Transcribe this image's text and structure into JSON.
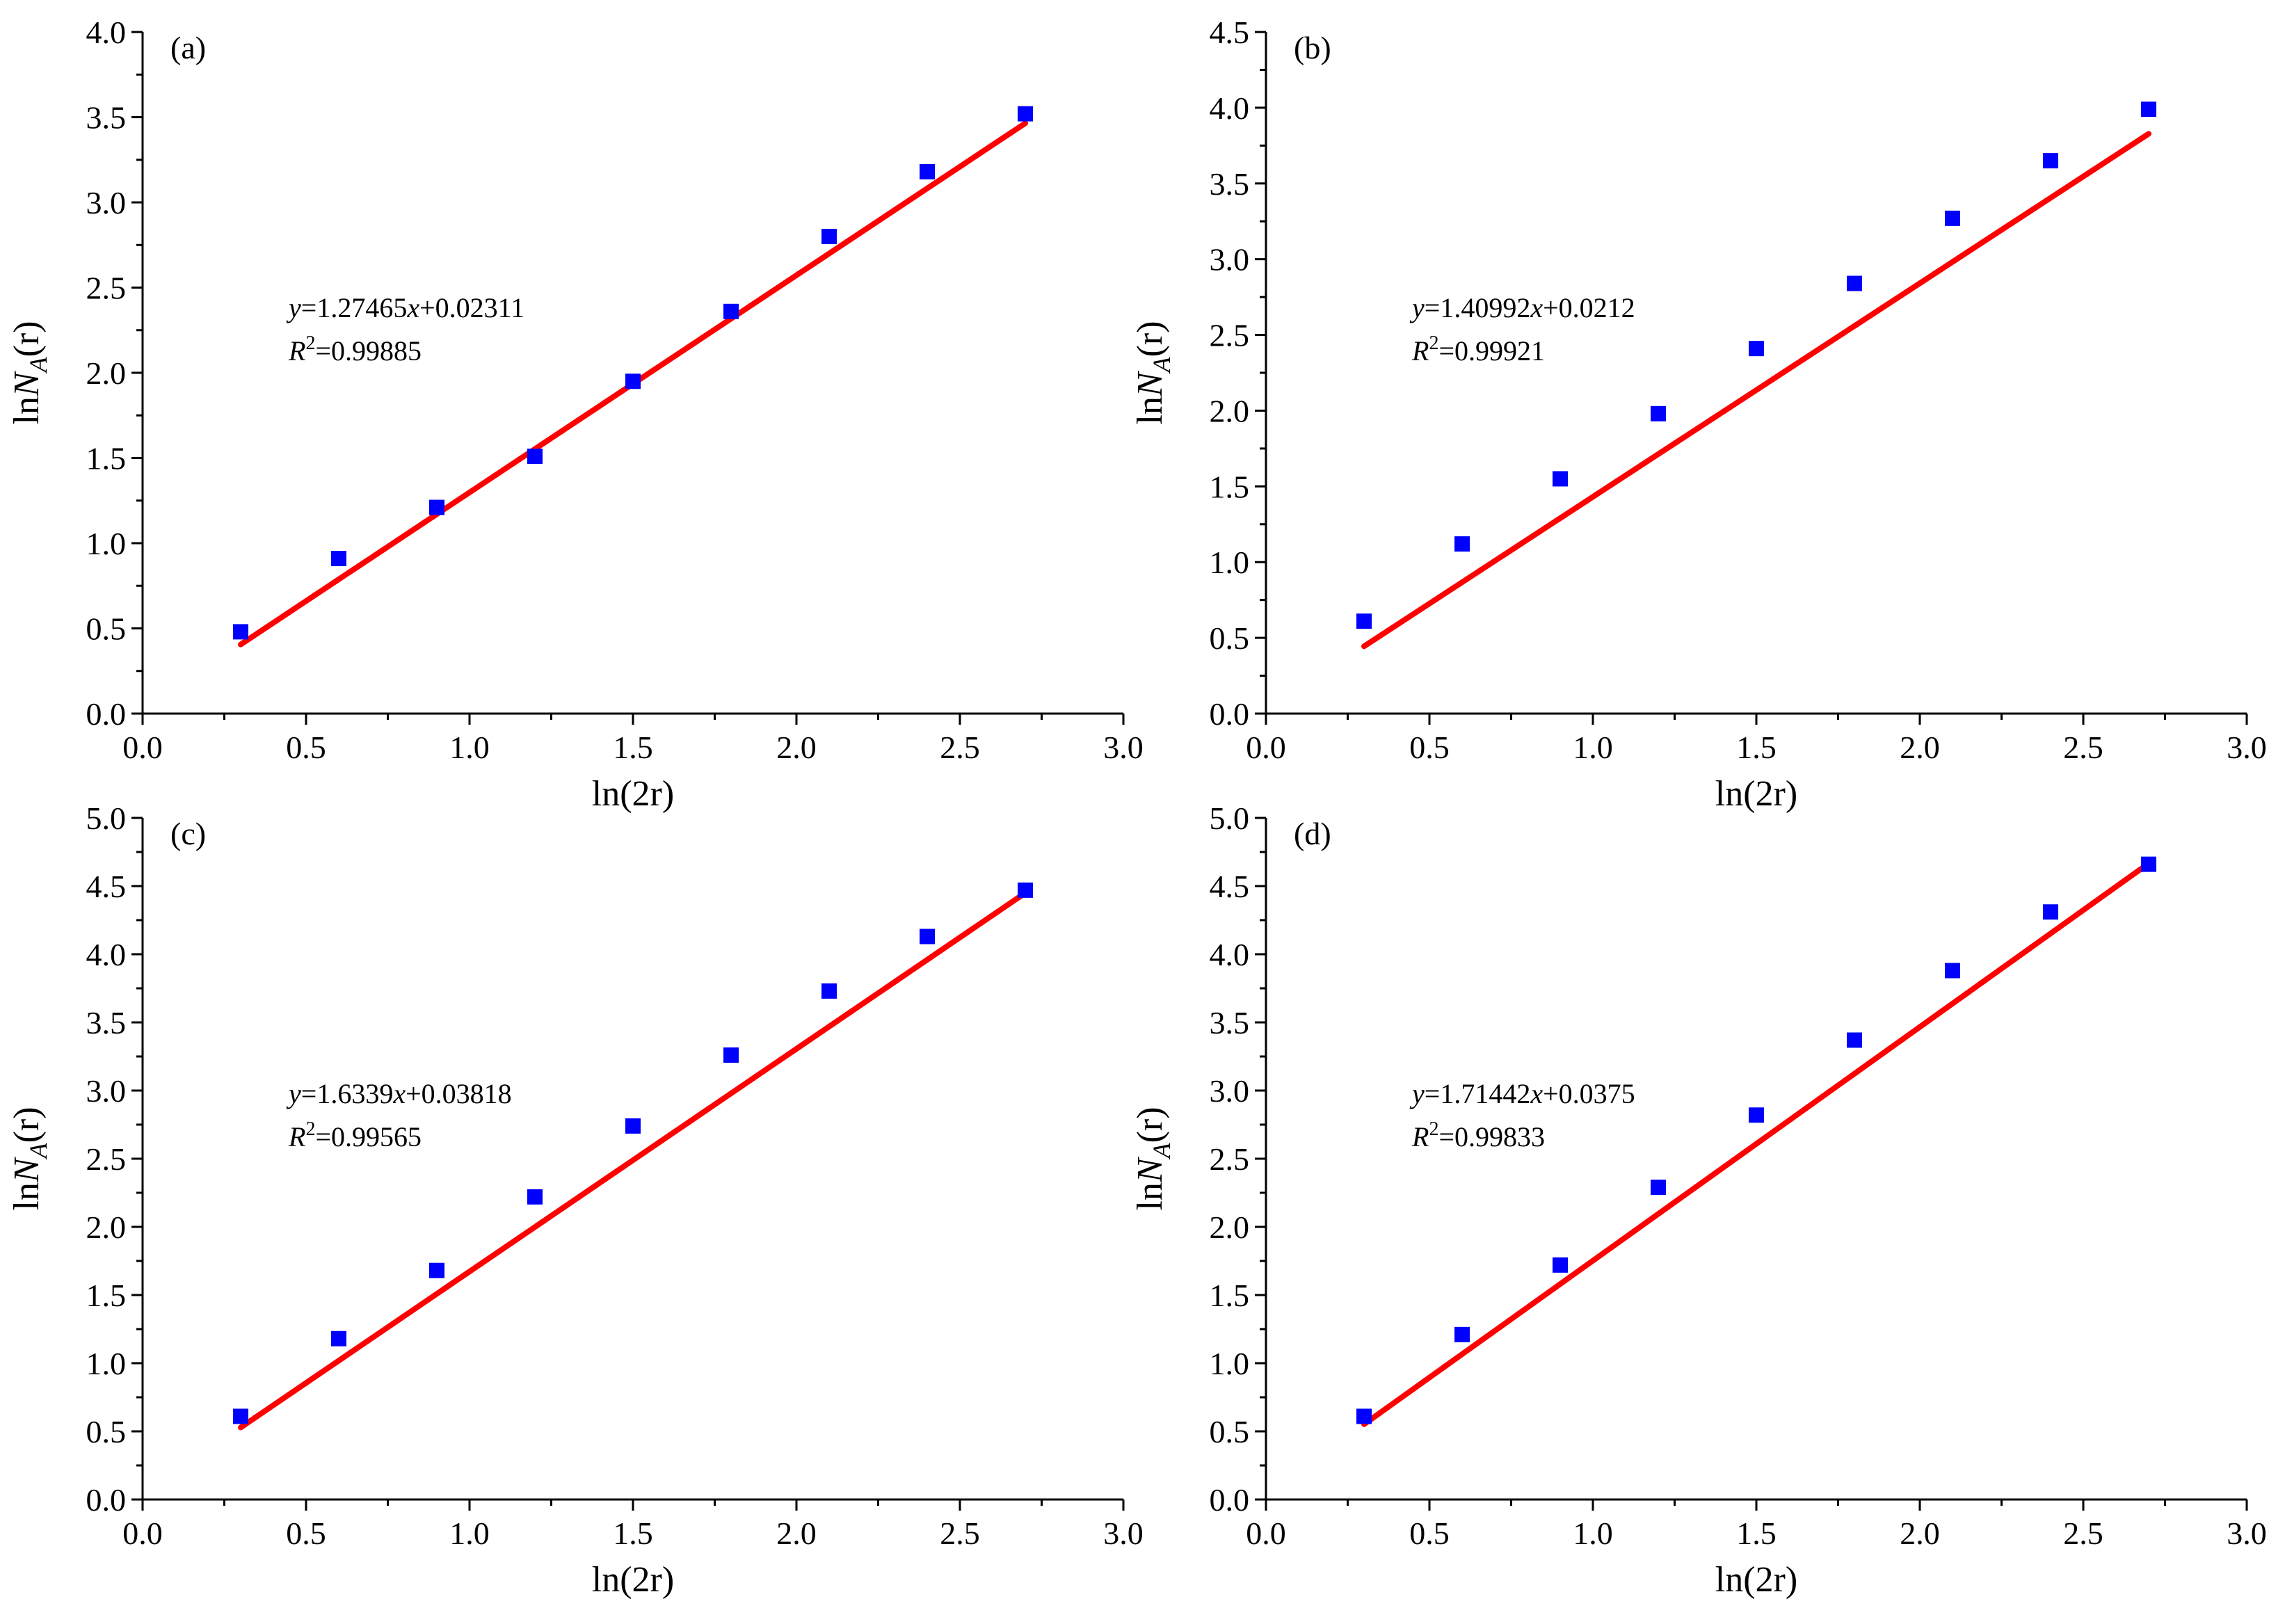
{
  "chart_data": [
    {
      "type": "scatter",
      "panel_label": "(a)",
      "xlabel": "ln(2r)",
      "ylabel_prefix": "ln",
      "ylabel_var": "N",
      "ylabel_sub": "A",
      "ylabel_suffix": "(r)",
      "xlim": [
        0,
        3
      ],
      "ylim": [
        0,
        4
      ],
      "xticks": [
        "0.0",
        "0.5",
        "1.0",
        "1.5",
        "2.0",
        "2.5",
        "3.0"
      ],
      "yticks": [
        "0.0",
        "0.5",
        "1.0",
        "1.5",
        "2.0",
        "2.5",
        "3.0",
        "3.5",
        "4.0"
      ],
      "x": [
        0.3,
        0.6,
        0.9,
        1.2,
        1.5,
        1.8,
        2.1,
        2.4,
        2.7
      ],
      "y": [
        0.48,
        0.91,
        1.21,
        1.51,
        1.95,
        2.36,
        2.8,
        3.18,
        3.52
      ],
      "fit": {
        "slope": 1.27465,
        "intercept": 0.02311,
        "x_range": [
          0.3,
          2.7
        ]
      },
      "equation": {
        "y": "y",
        "rest": "=1.27465",
        "x": "x",
        "tail": "+0.02311"
      },
      "r2": {
        "R": "R",
        "sup": "2",
        "value": "=0.99885"
      },
      "marker_color": "#0000ff",
      "line_color": "#ff0000"
    },
    {
      "type": "scatter",
      "panel_label": "(b)",
      "xlabel": "ln(2r)",
      "ylabel_prefix": "ln",
      "ylabel_var": "N",
      "ylabel_sub": "A",
      "ylabel_suffix": "(r)",
      "xlim": [
        0,
        3
      ],
      "ylim": [
        0,
        4.5
      ],
      "xticks": [
        "0.0",
        "0.5",
        "1.0",
        "1.5",
        "2.0",
        "2.5",
        "3.0"
      ],
      "yticks": [
        "0.0",
        "0.5",
        "1.0",
        "1.5",
        "2.0",
        "2.5",
        "3.0",
        "3.5",
        "4.0",
        "4.5"
      ],
      "x": [
        0.3,
        0.6,
        0.9,
        1.2,
        1.5,
        1.8,
        2.1,
        2.4,
        2.7
      ],
      "y": [
        0.61,
        1.12,
        1.55,
        1.98,
        2.41,
        2.84,
        3.27,
        3.65,
        3.99
      ],
      "fit": {
        "slope": 1.40992,
        "intercept": 0.0212,
        "x_range": [
          0.3,
          2.7
        ]
      },
      "equation": {
        "y": "y",
        "rest": "=1.40992",
        "x": "x",
        "tail": "+0.0212"
      },
      "r2": {
        "R": "R",
        "sup": "2",
        "value": "=0.99921"
      },
      "marker_color": "#0000ff",
      "line_color": "#ff0000"
    },
    {
      "type": "scatter",
      "panel_label": "(c)",
      "xlabel": "ln(2r)",
      "ylabel_prefix": "ln",
      "ylabel_var": "N",
      "ylabel_sub": "A",
      "ylabel_suffix": "(r)",
      "xlim": [
        0,
        3
      ],
      "ylim": [
        0,
        5
      ],
      "xticks": [
        "0.0",
        "0.5",
        "1.0",
        "1.5",
        "2.0",
        "2.5",
        "3.0"
      ],
      "yticks": [
        "0.0",
        "0.5",
        "1.0",
        "1.5",
        "2.0",
        "2.5",
        "3.0",
        "3.5",
        "4.0",
        "4.5",
        "5.0"
      ],
      "x": [
        0.3,
        0.6,
        0.9,
        1.2,
        1.5,
        1.8,
        2.1,
        2.4,
        2.7
      ],
      "y": [
        0.61,
        1.18,
        1.68,
        2.22,
        2.74,
        3.26,
        3.73,
        4.13,
        4.47
      ],
      "fit": {
        "slope": 1.6339,
        "intercept": 0.03818,
        "x_range": [
          0.3,
          2.7
        ]
      },
      "equation": {
        "y": "y",
        "rest": "=1.6339",
        "x": "x",
        "tail": "+0.03818"
      },
      "r2": {
        "R": "R",
        "sup": "2",
        "value": "=0.99565"
      },
      "marker_color": "#0000ff",
      "line_color": "#ff0000"
    },
    {
      "type": "scatter",
      "panel_label": "(d)",
      "xlabel": "ln(2r)",
      "ylabel_prefix": "ln",
      "ylabel_var": "N",
      "ylabel_sub": "A",
      "ylabel_suffix": "(r)",
      "xlim": [
        0,
        3
      ],
      "ylim": [
        0,
        5
      ],
      "xticks": [
        "0.0",
        "0.5",
        "1.0",
        "1.5",
        "2.0",
        "2.5",
        "3.0"
      ],
      "yticks": [
        "0.0",
        "0.5",
        "1.0",
        "1.5",
        "2.0",
        "2.5",
        "3.0",
        "3.5",
        "4.0",
        "4.5",
        "5.0"
      ],
      "x": [
        0.3,
        0.6,
        0.9,
        1.2,
        1.5,
        1.8,
        2.1,
        2.4,
        2.7
      ],
      "y": [
        0.61,
        1.21,
        1.72,
        2.29,
        2.82,
        3.37,
        3.88,
        4.31,
        4.66
      ],
      "fit": {
        "slope": 1.71442,
        "intercept": 0.0375,
        "x_range": [
          0.3,
          2.7
        ]
      },
      "equation": {
        "y": "y",
        "rest": "=1.71442",
        "x": "x",
        "tail": "+0.0375"
      },
      "r2": {
        "R": "R",
        "sup": "2",
        "value": "=0.99833"
      },
      "marker_color": "#0000ff",
      "line_color": "#ff0000"
    }
  ]
}
